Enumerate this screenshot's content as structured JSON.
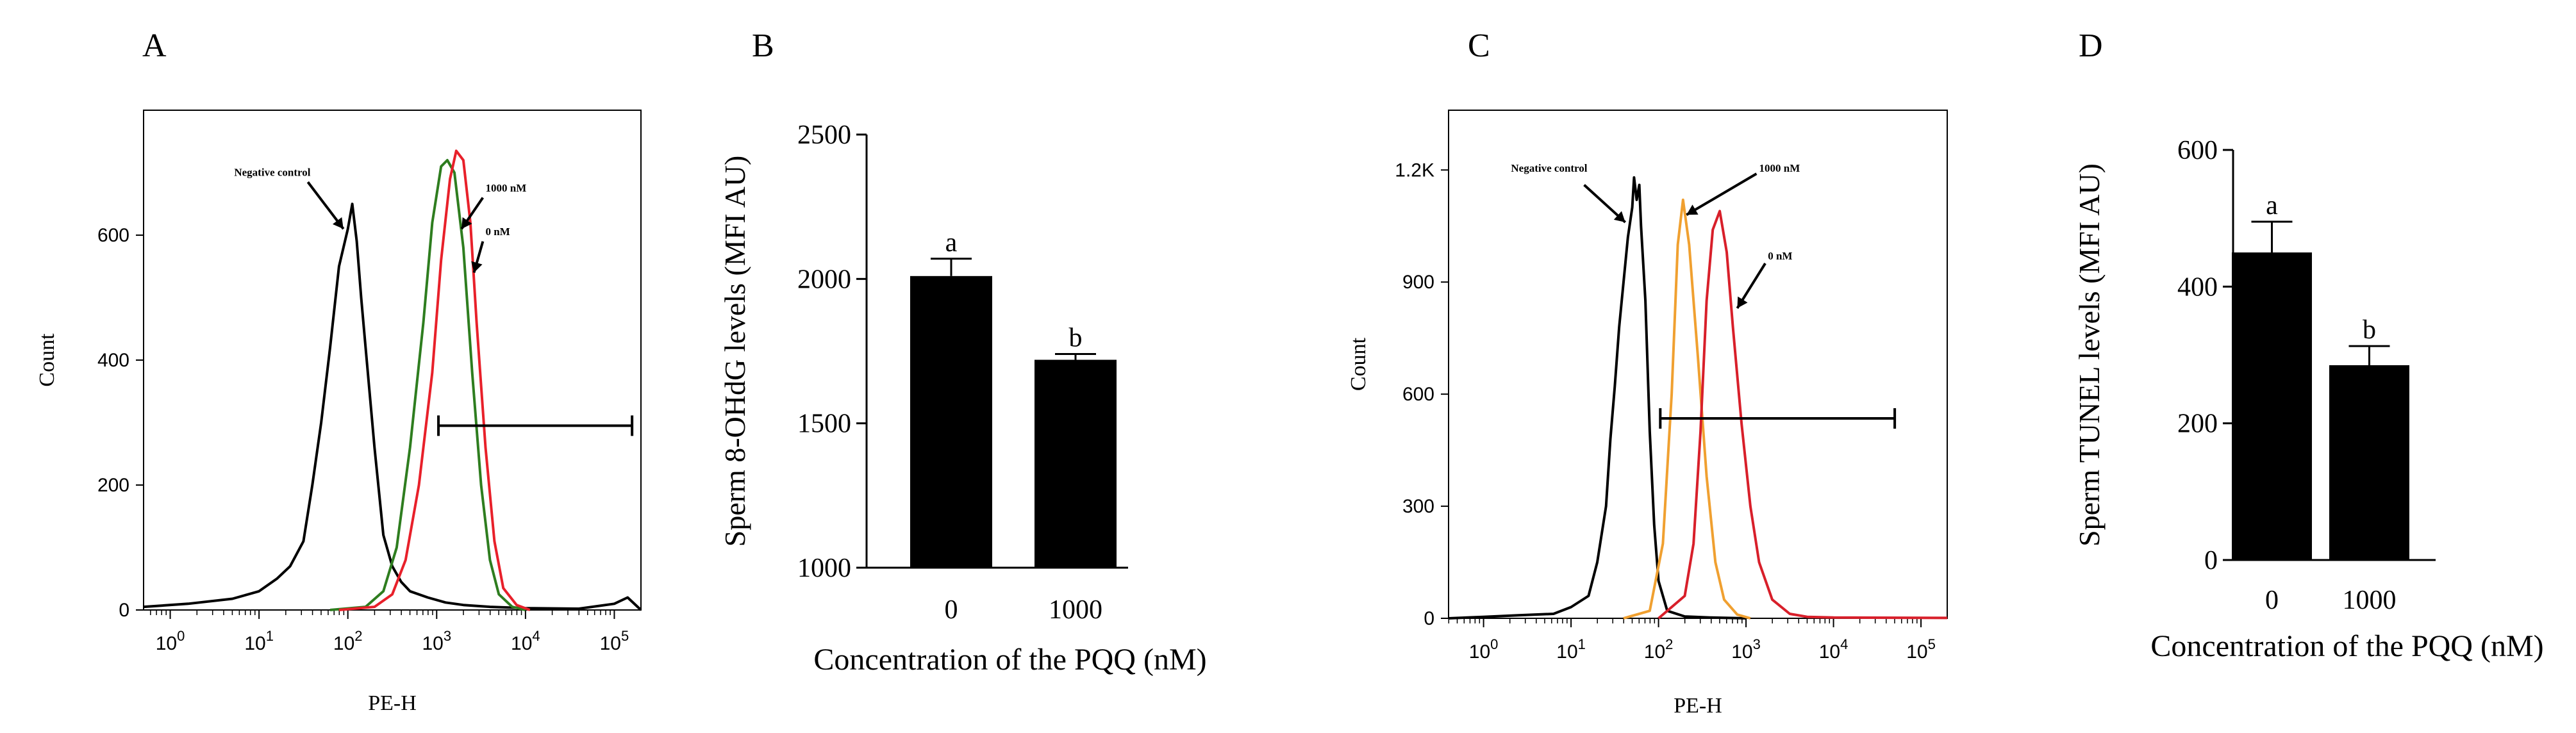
{
  "colors": {
    "black": "#000000",
    "green": "#2e7d1f",
    "red": "#e8202a",
    "orange": "#f0a030",
    "crimson": "#d81f2a"
  },
  "chart_data": [
    {
      "panel": "A",
      "type": "line",
      "title": "",
      "xlabel": "PE-H",
      "ylabel": "Count",
      "xscale": "log",
      "xlim_log10": [
        -0.3,
        5.3
      ],
      "ylim": [
        0,
        800
      ],
      "xticks": [
        {
          "base": "10",
          "exp": "0"
        },
        {
          "base": "10",
          "exp": "1"
        },
        {
          "base": "10",
          "exp": "2"
        },
        {
          "base": "10",
          "exp": "3"
        },
        {
          "base": "10",
          "exp": "4"
        },
        {
          "base": "10",
          "exp": "5"
        }
      ],
      "yticks": [
        "0",
        "200",
        "400",
        "600"
      ],
      "yticks_values": [
        0,
        200,
        400,
        600
      ],
      "series": [
        {
          "name": "Negative control",
          "color": "black",
          "x": [
            -0.3,
            0.2,
            0.7,
            1.0,
            1.2,
            1.35,
            1.5,
            1.6,
            1.7,
            1.8,
            1.9,
            2.0,
            2.05,
            2.1,
            2.15,
            2.2,
            2.3,
            2.4,
            2.5,
            2.6,
            2.7,
            2.9,
            3.1,
            3.3,
            3.6,
            4.0,
            4.6,
            5.0,
            5.15,
            5.3
          ],
          "y": [
            5,
            10,
            18,
            30,
            50,
            70,
            110,
            200,
            300,
            420,
            550,
            610,
            650,
            590,
            500,
            420,
            260,
            120,
            70,
            45,
            30,
            20,
            12,
            8,
            5,
            3,
            2,
            10,
            20,
            0
          ]
        },
        {
          "name": "1000 nM",
          "color": "green",
          "x": [
            1.8,
            2.2,
            2.4,
            2.55,
            2.7,
            2.85,
            2.95,
            3.05,
            3.12,
            3.2,
            3.3,
            3.4,
            3.5,
            3.6,
            3.7,
            3.85,
            4.0
          ],
          "y": [
            0,
            5,
            30,
            100,
            260,
            460,
            620,
            710,
            720,
            700,
            580,
            380,
            200,
            80,
            25,
            5,
            0
          ]
        },
        {
          "name": "0 nM",
          "color": "red",
          "x": [
            1.9,
            2.3,
            2.5,
            2.65,
            2.8,
            2.95,
            3.05,
            3.15,
            3.22,
            3.3,
            3.38,
            3.45,
            3.55,
            3.65,
            3.75,
            3.9,
            4.05
          ],
          "y": [
            0,
            5,
            25,
            80,
            200,
            380,
            560,
            690,
            735,
            720,
            620,
            460,
            260,
            110,
            35,
            8,
            0
          ]
        }
      ],
      "annotations": [
        {
          "text": "Negative control",
          "x": 1.15,
          "y": 695
        },
        {
          "text": "1000 nM",
          "x": 3.55,
          "y": 670
        },
        {
          "text": "0 nM",
          "x": 3.55,
          "y": 600
        }
      ],
      "gate": {
        "x_from": 3.02,
        "x_to": 5.2,
        "y": 295
      }
    },
    {
      "panel": "B",
      "type": "bar",
      "categories": [
        "0",
        "1000"
      ],
      "values": [
        2010,
        1720
      ],
      "errors": [
        60,
        20
      ],
      "letters": [
        "a",
        "b"
      ],
      "xlabel": "Concentration of the PQQ (nM)",
      "ylabel": "Sperm 8-OHdG levels (MFI AU)",
      "ylim": [
        1000,
        2500
      ],
      "yticks": [
        "1000",
        "1500",
        "2000",
        "2500"
      ],
      "yticks_values": [
        1000,
        1500,
        2000,
        2500
      ]
    },
    {
      "panel": "C",
      "type": "line",
      "title": "",
      "xlabel": "PE-H",
      "ylabel": "Count",
      "xscale": "log",
      "xlim_log10": [
        -0.4,
        5.3
      ],
      "ylim": [
        0,
        1360
      ],
      "xticks": [
        {
          "base": "10",
          "exp": "0"
        },
        {
          "base": "10",
          "exp": "1"
        },
        {
          "base": "10",
          "exp": "2"
        },
        {
          "base": "10",
          "exp": "3"
        },
        {
          "base": "10",
          "exp": "4"
        },
        {
          "base": "10",
          "exp": "5"
        }
      ],
      "yticks": [
        "0",
        "300",
        "600",
        "900",
        "1.2K"
      ],
      "yticks_values": [
        0,
        300,
        600,
        900,
        1200
      ],
      "series": [
        {
          "name": "Negative control",
          "color": "black",
          "x": [
            -0.4,
            0.0,
            0.4,
            0.8,
            1.0,
            1.2,
            1.3,
            1.4,
            1.45,
            1.5,
            1.55,
            1.6,
            1.65,
            1.7,
            1.72,
            1.75,
            1.78,
            1.8,
            1.85,
            1.9,
            1.95,
            2.0,
            2.1,
            2.3,
            2.6,
            3.0
          ],
          "y": [
            0,
            4,
            8,
            12,
            30,
            60,
            150,
            300,
            480,
            620,
            780,
            900,
            1020,
            1100,
            1180,
            1120,
            1160,
            1050,
            850,
            500,
            250,
            100,
            20,
            5,
            2,
            0
          ]
        },
        {
          "name": "1000 nM",
          "color": "orange",
          "x": [
            1.6,
            1.9,
            2.05,
            2.15,
            2.22,
            2.28,
            2.35,
            2.45,
            2.55,
            2.65,
            2.75,
            2.9,
            3.05
          ],
          "y": [
            0,
            20,
            200,
            600,
            1000,
            1120,
            1000,
            700,
            380,
            150,
            50,
            10,
            0
          ]
        },
        {
          "name": "0 nM",
          "color": "crimson",
          "x": [
            2.0,
            2.3,
            2.4,
            2.48,
            2.55,
            2.62,
            2.7,
            2.78,
            2.85,
            2.95,
            3.05,
            3.15,
            3.3,
            3.5,
            3.7,
            4.0,
            5.3
          ],
          "y": [
            0,
            60,
            200,
            500,
            850,
            1040,
            1090,
            980,
            780,
            520,
            300,
            150,
            50,
            12,
            4,
            2,
            1
          ]
        }
      ],
      "annotations": [
        {
          "text": "Negative control",
          "x": 0.75,
          "y": 1195
        },
        {
          "text": "1000 nM",
          "x": 3.15,
          "y": 1195
        },
        {
          "text": "0 nM",
          "x": 3.25,
          "y": 960
        }
      ],
      "gate": {
        "x_from": 2.02,
        "x_to": 4.7,
        "y": 535
      }
    },
    {
      "panel": "D",
      "type": "bar",
      "categories": [
        "0",
        "1000"
      ],
      "values": [
        450,
        285
      ],
      "errors": [
        45,
        28
      ],
      "letters": [
        "a",
        "b"
      ],
      "xlabel": "Concentration of the PQQ (nM)",
      "ylabel": "Sperm TUNEL levels (MFI AU)",
      "ylim": [
        0,
        600
      ],
      "yticks": [
        "0",
        "200",
        "400",
        "600"
      ],
      "yticks_values": [
        0,
        200,
        400,
        600
      ]
    }
  ]
}
